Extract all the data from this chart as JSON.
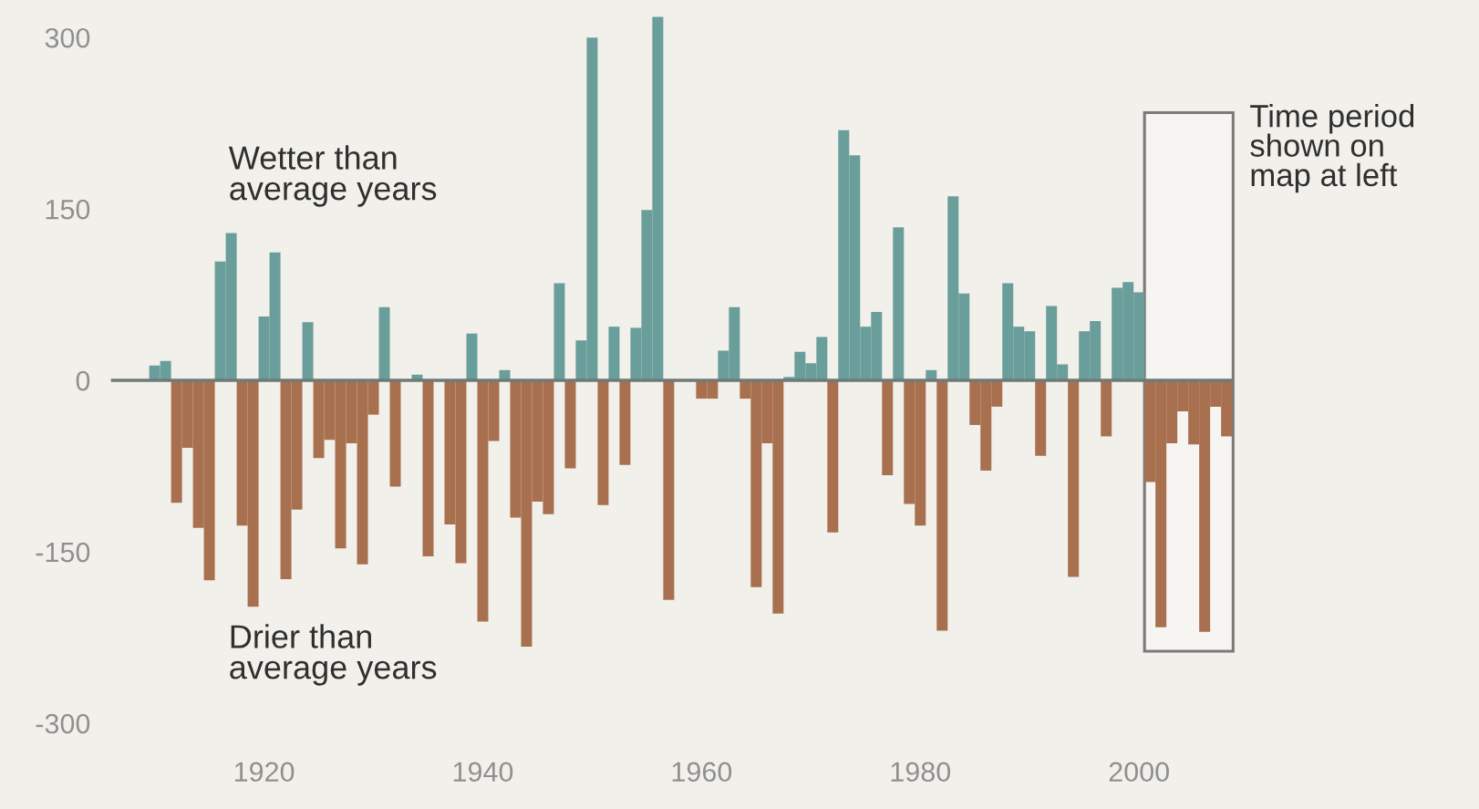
{
  "chart_data": {
    "type": "bar",
    "x": [
      1910,
      1911,
      1912,
      1913,
      1914,
      1915,
      1916,
      1917,
      1918,
      1919,
      1920,
      1921,
      1922,
      1923,
      1924,
      1925,
      1926,
      1927,
      1928,
      1929,
      1930,
      1931,
      1932,
      1933,
      1934,
      1935,
      1936,
      1937,
      1938,
      1939,
      1940,
      1941,
      1942,
      1943,
      1944,
      1945,
      1946,
      1947,
      1948,
      1949,
      1950,
      1951,
      1952,
      1953,
      1954,
      1955,
      1956,
      1957,
      1958,
      1959,
      1960,
      1961,
      1962,
      1963,
      1964,
      1965,
      1966,
      1967,
      1968,
      1969,
      1970,
      1971,
      1972,
      1973,
      1974,
      1975,
      1976,
      1977,
      1978,
      1979,
      1980,
      1981,
      1982,
      1983,
      1984,
      1985,
      1986,
      1987,
      1988,
      1989,
      1990,
      1991,
      1992,
      1993,
      1994,
      1995,
      1996,
      1997,
      1998,
      1999,
      2000,
      2001,
      2002,
      2003,
      2004,
      2005,
      2006,
      2007,
      2008
    ],
    "values": [
      13,
      17,
      -107,
      -59,
      -129,
      -175,
      104,
      129,
      -127,
      -198,
      56,
      112,
      -174,
      -113,
      51,
      -68,
      -52,
      -147,
      -55,
      -161,
      -30,
      64,
      -93,
      0,
      5,
      -154,
      0,
      -126,
      -160,
      41,
      -211,
      -53,
      9,
      -120,
      -233,
      -106,
      -117,
      85,
      -77,
      35,
      300,
      -109,
      47,
      -74,
      46,
      149,
      318,
      -192,
      0,
      0,
      -16,
      -16,
      26,
      64,
      -16,
      -181,
      -55,
      -204,
      3,
      25,
      15,
      38,
      -133,
      219,
      197,
      47,
      60,
      -83,
      134,
      -108,
      -127,
      9,
      -219,
      161,
      76,
      -39,
      -79,
      -23,
      85,
      47,
      43,
      -66,
      65,
      14,
      -172,
      43,
      52,
      -49,
      81,
      86,
      77,
      -89,
      -216,
      -55,
      -27,
      -56,
      -220,
      -23,
      -49
    ],
    "colors": [
      "#6a9e9b",
      "#6a9e9b",
      "#a8704f",
      "#a8704f",
      "#a8704f",
      "#a8704f",
      "#6a9e9b",
      "#6a9e9b",
      "#a8704f",
      "#a8704f",
      "#6a9e9b",
      "#6a9e9b",
      "#a8704f",
      "#a8704f",
      "#6a9e9b",
      "#a8704f",
      "#a8704f",
      "#a8704f",
      "#a8704f",
      "#a8704f",
      "#a8704f",
      "#6a9e9b",
      "#a8704f",
      "#6a9e9b",
      "#6a9e9b",
      "#a8704f",
      "#a8704f",
      "#a8704f",
      "#a8704f",
      "#6a9e9b",
      "#a8704f",
      "#a8704f",
      "#6a9e9b",
      "#a8704f",
      "#a8704f",
      "#a8704f",
      "#a8704f",
      "#6a9e9b",
      "#a8704f",
      "#6a9e9b",
      "#6a9e9b",
      "#a8704f",
      "#6a9e9b",
      "#a8704f",
      "#6a9e9b",
      "#6a9e9b",
      "#6a9e9b",
      "#a8704f",
      "#a8704f",
      "#a8704f",
      "#a8704f",
      "#a8704f",
      "#6a9e9b",
      "#6a9e9b",
      "#a8704f",
      "#a8704f",
      "#a8704f",
      "#a8704f",
      "#6a9e9b",
      "#6a9e9b",
      "#6a9e9b",
      "#6a9e9b",
      "#a8704f",
      "#6a9e9b",
      "#6a9e9b",
      "#6a9e9b",
      "#6a9e9b",
      "#a8704f",
      "#6a9e9b",
      "#a8704f",
      "#a8704f",
      "#6a9e9b",
      "#a8704f",
      "#6a9e9b",
      "#6a9e9b",
      "#a8704f",
      "#a8704f",
      "#a8704f",
      "#6a9e9b",
      "#6a9e9b",
      "#6a9e9b",
      "#a8704f",
      "#6a9e9b",
      "#6a9e9b",
      "#a8704f",
      "#6a9e9b",
      "#6a9e9b",
      "#a8704f",
      "#6a9e9b",
      "#6a9e9b",
      "#6a9e9b",
      "#a8704f",
      "#a8704f",
      "#a8704f",
      "#a8704f",
      "#a8704f",
      "#a8704f",
      "#a8704f",
      "#a8704f"
    ],
    "xlim": [
      1906,
      2008.5
    ],
    "xticks": [
      1920,
      1940,
      1960,
      1980,
      2000
    ],
    "ylim": [
      -300,
      330
    ],
    "yticks": [
      300,
      150,
      0,
      -150,
      -300
    ],
    "ref_lines": [
      {
        "axis": "y",
        "value": 0,
        "color": "#6f7a78"
      }
    ],
    "bands": [
      {
        "axis": "x",
        "from": 2000.5,
        "to": 2008.6,
        "label": "Time period\nshown on\nmap at left",
        "color": "#f6f5f1"
      }
    ],
    "annotations": [
      "Wetter than\naverage years",
      "Drier than\naverage years"
    ],
    "grid": false,
    "legend": false
  }
}
